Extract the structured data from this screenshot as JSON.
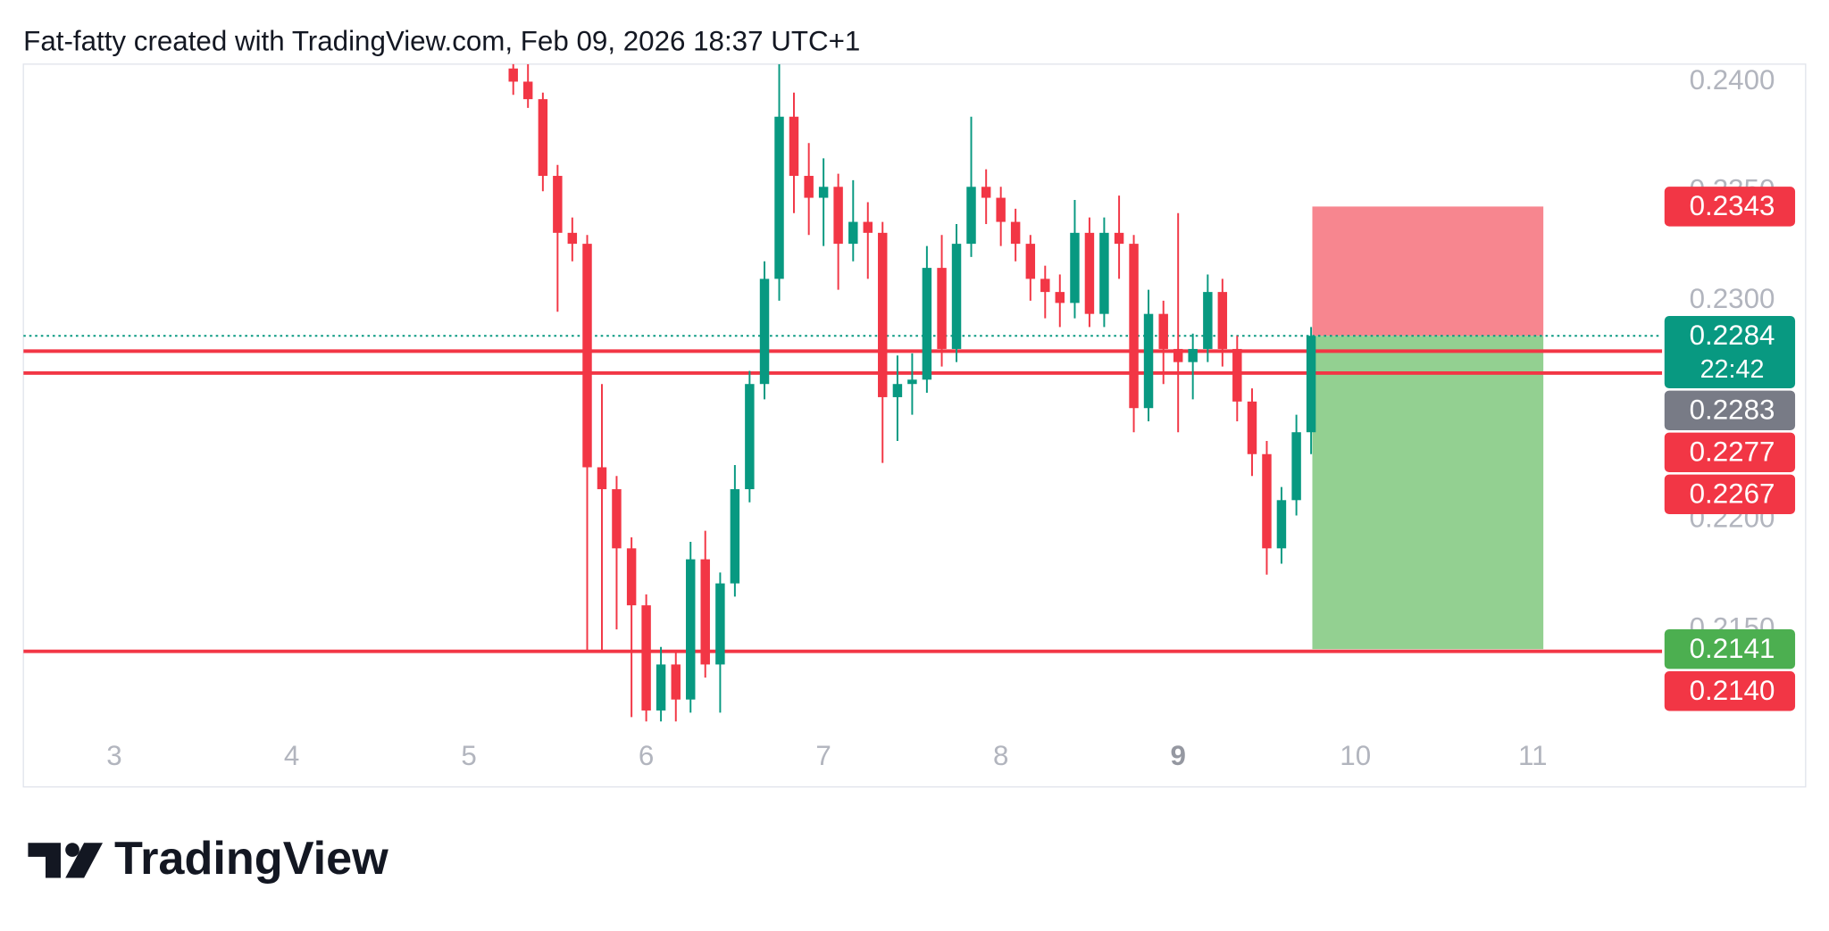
{
  "header": "Fat-fatty created with TradingView.com, Feb 09, 2026 18:37 UTC+1",
  "brand": "TradingView",
  "chart_data": {
    "type": "candlestick",
    "up_color": "#089981",
    "down_color": "#f23645",
    "xlim": [
      2.487,
      11.73
    ],
    "xticks": [
      3,
      4,
      5,
      6,
      7,
      8,
      9,
      10,
      11
    ],
    "xtick_bold_index": 6,
    "ylim": [
      0.2101,
      0.2408
    ],
    "yticks": [
      {
        "value": 0.215,
        "label": "0.2150"
      },
      {
        "value": 0.22,
        "label": "0.2200"
      },
      {
        "value": 0.23,
        "label": "0.2300"
      },
      {
        "value": 0.235,
        "label": "0.2350"
      },
      {
        "value": 0.24,
        "label": "0.2400"
      }
    ],
    "grid": false,
    "x": [
      5.25,
      5.333,
      5.417,
      5.5,
      5.583,
      5.667,
      5.75,
      5.833,
      5.917,
      6,
      6.083,
      6.167,
      6.25,
      6.333,
      6.417,
      6.5,
      6.583,
      6.667,
      6.75,
      6.833,
      6.917,
      7,
      7.083,
      7.167,
      7.25,
      7.333,
      7.417,
      7.5,
      7.583,
      7.667,
      7.75,
      7.833,
      7.917,
      8,
      8.083,
      8.167,
      8.25,
      8.333,
      8.417,
      8.5,
      8.583,
      8.667,
      8.75,
      8.833,
      8.917,
      9,
      9.083,
      9.167,
      9.25,
      9.333,
      9.417,
      9.5,
      9.583,
      9.667,
      9.75
    ],
    "open": [
      0.2406,
      0.24,
      0.2392,
      0.2357,
      0.2331,
      0.2326,
      0.2224,
      0.2214,
      0.2187,
      0.2161,
      0.2113,
      0.2134,
      0.2118,
      0.2182,
      0.2134,
      0.2171,
      0.2214,
      0.2262,
      0.231,
      0.2384,
      0.2357,
      0.2347,
      0.2352,
      0.2326,
      0.2336,
      0.2331,
      0.2256,
      0.2262,
      0.2264,
      0.2315,
      0.2278,
      0.2326,
      0.2352,
      0.2347,
      0.2336,
      0.2326,
      0.231,
      0.2304,
      0.2299,
      0.2331,
      0.2294,
      0.2331,
      0.2326,
      0.2251,
      0.2294,
      0.2278,
      0.2272,
      0.2278,
      0.2304,
      0.2278,
      0.2254,
      0.223,
      0.2187,
      0.2209,
      0.224
    ],
    "high": [
      0.2412,
      0.2408,
      0.2395,
      0.2362,
      0.2338,
      0.233,
      0.2262,
      0.222,
      0.2192,
      0.2166,
      0.2142,
      0.214,
      0.219,
      0.2195,
      0.2176,
      0.2225,
      0.2268,
      0.2318,
      0.2408,
      0.2395,
      0.2372,
      0.2365,
      0.2358,
      0.2355,
      0.2345,
      0.2336,
      0.2275,
      0.2276,
      0.2325,
      0.233,
      0.2335,
      0.2384,
      0.236,
      0.2352,
      0.2342,
      0.233,
      0.2316,
      0.2312,
      0.2346,
      0.2338,
      0.2338,
      0.2348,
      0.233,
      0.2305,
      0.23,
      0.234,
      0.2285,
      0.2312,
      0.231,
      0.2284,
      0.226,
      0.2236,
      0.2215,
      0.2248,
      0.2288
    ],
    "low": [
      0.2394,
      0.2388,
      0.235,
      0.2295,
      0.2318,
      0.214,
      0.214,
      0.215,
      0.211,
      0.2108,
      0.2108,
      0.2108,
      0.2112,
      0.2128,
      0.2112,
      0.2165,
      0.2208,
      0.2255,
      0.23,
      0.234,
      0.233,
      0.2325,
      0.2305,
      0.2318,
      0.231,
      0.2226,
      0.2236,
      0.2248,
      0.2258,
      0.227,
      0.2272,
      0.232,
      0.2335,
      0.2325,
      0.2318,
      0.23,
      0.2292,
      0.2288,
      0.2292,
      0.2288,
      0.2288,
      0.231,
      0.224,
      0.2245,
      0.2262,
      0.224,
      0.2255,
      0.2272,
      0.227,
      0.2245,
      0.222,
      0.2175,
      0.218,
      0.2202,
      0.223
    ],
    "close": [
      0.24,
      0.2392,
      0.2357,
      0.2331,
      0.2326,
      0.2224,
      0.2214,
      0.2187,
      0.2161,
      0.2113,
      0.2134,
      0.2118,
      0.2182,
      0.2134,
      0.2171,
      0.2214,
      0.2262,
      0.231,
      0.2384,
      0.2357,
      0.2347,
      0.2352,
      0.2326,
      0.2336,
      0.2331,
      0.2256,
      0.2262,
      0.2264,
      0.2315,
      0.2278,
      0.2326,
      0.2352,
      0.2347,
      0.2336,
      0.2326,
      0.231,
      0.2304,
      0.2299,
      0.2331,
      0.2294,
      0.2331,
      0.2326,
      0.2251,
      0.2294,
      0.2278,
      0.2272,
      0.2278,
      0.2304,
      0.2278,
      0.2254,
      0.223,
      0.2187,
      0.2209,
      0.224,
      0.2284
    ],
    "levels": [
      {
        "value": 0.2277,
        "color": "#f23645"
      },
      {
        "value": 0.2267,
        "color": "#f23645"
      },
      {
        "value": 0.214,
        "color": "#f23645"
      }
    ],
    "last_price": {
      "value": 0.2284,
      "color": "#089981"
    },
    "position": {
      "entry": 0.2284,
      "stop": 0.2343,
      "target": 0.2141,
      "x": [
        9.757,
        11.06
      ],
      "stop_color": "#f7868f",
      "target_color": "#93d091"
    },
    "price_labels": [
      {
        "value": 0.2343,
        "label": "0.2343",
        "color": "#f23645"
      },
      {
        "value": 0.2284,
        "label": "0.2284",
        "sublabel": "22:42",
        "color": "#089981"
      },
      {
        "value": 0.2283,
        "label": "0.2283",
        "color": "#787b86"
      },
      {
        "value": 0.2277,
        "label": "0.2277",
        "color": "#f23645"
      },
      {
        "value": 0.2267,
        "label": "0.2267",
        "color": "#f23645"
      },
      {
        "value": 0.2141,
        "label": "0.2141",
        "color": "#4caf50"
      },
      {
        "value": 0.214,
        "label": "0.2140",
        "color": "#f23645"
      }
    ]
  }
}
